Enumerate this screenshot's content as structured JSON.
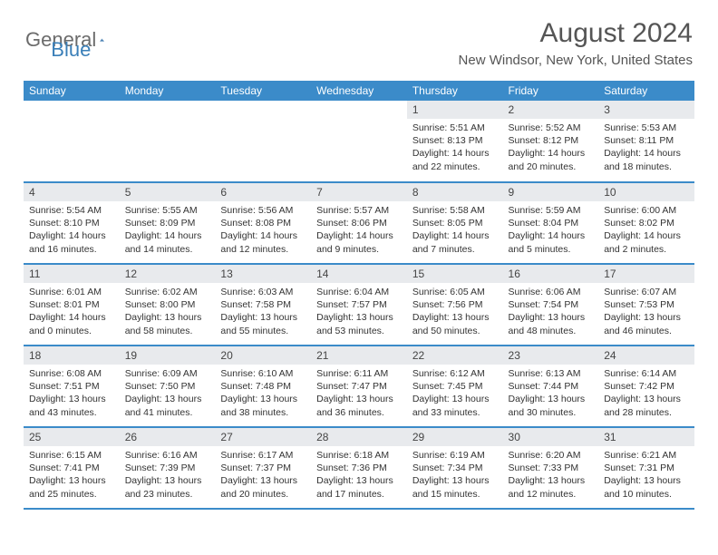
{
  "logo": {
    "general": "General",
    "blue": "Blue"
  },
  "title": "August 2024",
  "location": "New Windsor, New York, United States",
  "accent_color": "#3b8bc9",
  "daynum_bg": "#e8eaed",
  "day_headers": [
    "Sunday",
    "Monday",
    "Tuesday",
    "Wednesday",
    "Thursday",
    "Friday",
    "Saturday"
  ],
  "weeks": [
    [
      {
        "num": "",
        "sunrise": "",
        "sunset": "",
        "daylight1": "",
        "daylight2": ""
      },
      {
        "num": "",
        "sunrise": "",
        "sunset": "",
        "daylight1": "",
        "daylight2": ""
      },
      {
        "num": "",
        "sunrise": "",
        "sunset": "",
        "daylight1": "",
        "daylight2": ""
      },
      {
        "num": "",
        "sunrise": "",
        "sunset": "",
        "daylight1": "",
        "daylight2": ""
      },
      {
        "num": "1",
        "sunrise": "Sunrise: 5:51 AM",
        "sunset": "Sunset: 8:13 PM",
        "daylight1": "Daylight: 14 hours",
        "daylight2": "and 22 minutes."
      },
      {
        "num": "2",
        "sunrise": "Sunrise: 5:52 AM",
        "sunset": "Sunset: 8:12 PM",
        "daylight1": "Daylight: 14 hours",
        "daylight2": "and 20 minutes."
      },
      {
        "num": "3",
        "sunrise": "Sunrise: 5:53 AM",
        "sunset": "Sunset: 8:11 PM",
        "daylight1": "Daylight: 14 hours",
        "daylight2": "and 18 minutes."
      }
    ],
    [
      {
        "num": "4",
        "sunrise": "Sunrise: 5:54 AM",
        "sunset": "Sunset: 8:10 PM",
        "daylight1": "Daylight: 14 hours",
        "daylight2": "and 16 minutes."
      },
      {
        "num": "5",
        "sunrise": "Sunrise: 5:55 AM",
        "sunset": "Sunset: 8:09 PM",
        "daylight1": "Daylight: 14 hours",
        "daylight2": "and 14 minutes."
      },
      {
        "num": "6",
        "sunrise": "Sunrise: 5:56 AM",
        "sunset": "Sunset: 8:08 PM",
        "daylight1": "Daylight: 14 hours",
        "daylight2": "and 12 minutes."
      },
      {
        "num": "7",
        "sunrise": "Sunrise: 5:57 AM",
        "sunset": "Sunset: 8:06 PM",
        "daylight1": "Daylight: 14 hours",
        "daylight2": "and 9 minutes."
      },
      {
        "num": "8",
        "sunrise": "Sunrise: 5:58 AM",
        "sunset": "Sunset: 8:05 PM",
        "daylight1": "Daylight: 14 hours",
        "daylight2": "and 7 minutes."
      },
      {
        "num": "9",
        "sunrise": "Sunrise: 5:59 AM",
        "sunset": "Sunset: 8:04 PM",
        "daylight1": "Daylight: 14 hours",
        "daylight2": "and 5 minutes."
      },
      {
        "num": "10",
        "sunrise": "Sunrise: 6:00 AM",
        "sunset": "Sunset: 8:02 PM",
        "daylight1": "Daylight: 14 hours",
        "daylight2": "and 2 minutes."
      }
    ],
    [
      {
        "num": "11",
        "sunrise": "Sunrise: 6:01 AM",
        "sunset": "Sunset: 8:01 PM",
        "daylight1": "Daylight: 14 hours",
        "daylight2": "and 0 minutes."
      },
      {
        "num": "12",
        "sunrise": "Sunrise: 6:02 AM",
        "sunset": "Sunset: 8:00 PM",
        "daylight1": "Daylight: 13 hours",
        "daylight2": "and 58 minutes."
      },
      {
        "num": "13",
        "sunrise": "Sunrise: 6:03 AM",
        "sunset": "Sunset: 7:58 PM",
        "daylight1": "Daylight: 13 hours",
        "daylight2": "and 55 minutes."
      },
      {
        "num": "14",
        "sunrise": "Sunrise: 6:04 AM",
        "sunset": "Sunset: 7:57 PM",
        "daylight1": "Daylight: 13 hours",
        "daylight2": "and 53 minutes."
      },
      {
        "num": "15",
        "sunrise": "Sunrise: 6:05 AM",
        "sunset": "Sunset: 7:56 PM",
        "daylight1": "Daylight: 13 hours",
        "daylight2": "and 50 minutes."
      },
      {
        "num": "16",
        "sunrise": "Sunrise: 6:06 AM",
        "sunset": "Sunset: 7:54 PM",
        "daylight1": "Daylight: 13 hours",
        "daylight2": "and 48 minutes."
      },
      {
        "num": "17",
        "sunrise": "Sunrise: 6:07 AM",
        "sunset": "Sunset: 7:53 PM",
        "daylight1": "Daylight: 13 hours",
        "daylight2": "and 46 minutes."
      }
    ],
    [
      {
        "num": "18",
        "sunrise": "Sunrise: 6:08 AM",
        "sunset": "Sunset: 7:51 PM",
        "daylight1": "Daylight: 13 hours",
        "daylight2": "and 43 minutes."
      },
      {
        "num": "19",
        "sunrise": "Sunrise: 6:09 AM",
        "sunset": "Sunset: 7:50 PM",
        "daylight1": "Daylight: 13 hours",
        "daylight2": "and 41 minutes."
      },
      {
        "num": "20",
        "sunrise": "Sunrise: 6:10 AM",
        "sunset": "Sunset: 7:48 PM",
        "daylight1": "Daylight: 13 hours",
        "daylight2": "and 38 minutes."
      },
      {
        "num": "21",
        "sunrise": "Sunrise: 6:11 AM",
        "sunset": "Sunset: 7:47 PM",
        "daylight1": "Daylight: 13 hours",
        "daylight2": "and 36 minutes."
      },
      {
        "num": "22",
        "sunrise": "Sunrise: 6:12 AM",
        "sunset": "Sunset: 7:45 PM",
        "daylight1": "Daylight: 13 hours",
        "daylight2": "and 33 minutes."
      },
      {
        "num": "23",
        "sunrise": "Sunrise: 6:13 AM",
        "sunset": "Sunset: 7:44 PM",
        "daylight1": "Daylight: 13 hours",
        "daylight2": "and 30 minutes."
      },
      {
        "num": "24",
        "sunrise": "Sunrise: 6:14 AM",
        "sunset": "Sunset: 7:42 PM",
        "daylight1": "Daylight: 13 hours",
        "daylight2": "and 28 minutes."
      }
    ],
    [
      {
        "num": "25",
        "sunrise": "Sunrise: 6:15 AM",
        "sunset": "Sunset: 7:41 PM",
        "daylight1": "Daylight: 13 hours",
        "daylight2": "and 25 minutes."
      },
      {
        "num": "26",
        "sunrise": "Sunrise: 6:16 AM",
        "sunset": "Sunset: 7:39 PM",
        "daylight1": "Daylight: 13 hours",
        "daylight2": "and 23 minutes."
      },
      {
        "num": "27",
        "sunrise": "Sunrise: 6:17 AM",
        "sunset": "Sunset: 7:37 PM",
        "daylight1": "Daylight: 13 hours",
        "daylight2": "and 20 minutes."
      },
      {
        "num": "28",
        "sunrise": "Sunrise: 6:18 AM",
        "sunset": "Sunset: 7:36 PM",
        "daylight1": "Daylight: 13 hours",
        "daylight2": "and 17 minutes."
      },
      {
        "num": "29",
        "sunrise": "Sunrise: 6:19 AM",
        "sunset": "Sunset: 7:34 PM",
        "daylight1": "Daylight: 13 hours",
        "daylight2": "and 15 minutes."
      },
      {
        "num": "30",
        "sunrise": "Sunrise: 6:20 AM",
        "sunset": "Sunset: 7:33 PM",
        "daylight1": "Daylight: 13 hours",
        "daylight2": "and 12 minutes."
      },
      {
        "num": "31",
        "sunrise": "Sunrise: 6:21 AM",
        "sunset": "Sunset: 7:31 PM",
        "daylight1": "Daylight: 13 hours",
        "daylight2": "and 10 minutes."
      }
    ]
  ]
}
